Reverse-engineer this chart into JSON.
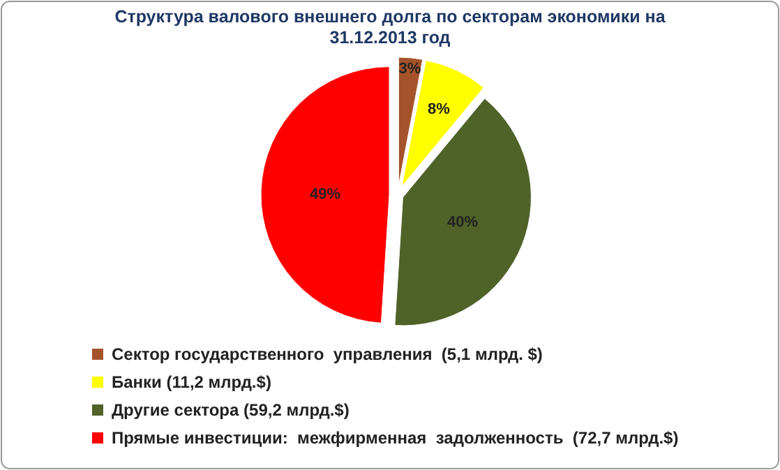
{
  "chart_data": {
    "type": "pie",
    "title": "Структура валового внешнего долга по секторам экономики на 31.12.2013 год",
    "categories": [
      "Сектор государственного  управления  (5,1 млрд. $)",
      "Банки (11,2 млрд.$)",
      "Другие сектора (59,2 млрд.$)",
      "Прямые инвестиции:  межфирменная  задолженность  (72,7 млрд.$)"
    ],
    "values": [
      3,
      8,
      40,
      49
    ],
    "colors": [
      "#a5532a",
      "#ffff00",
      "#4f6228",
      "#ff0000"
    ],
    "value_labels": [
      "3%",
      "8%",
      "40%",
      "49%"
    ],
    "legend": "bottom"
  }
}
